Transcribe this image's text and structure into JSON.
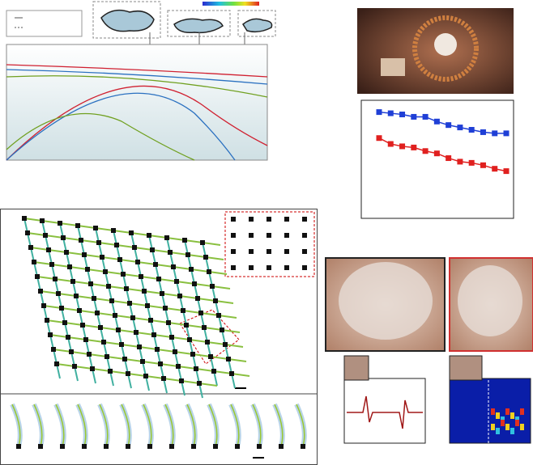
{
  "chart_data": {
    "type": "line",
    "categories": [
      null,
      null,
      null,
      null,
      null,
      null,
      null,
      null,
      null,
      null,
      null,
      null
    ],
    "series": [
      {
        "color": "#1f3fd6",
        "values": [
          0.9,
          0.89,
          0.88,
          0.86,
          0.86,
          0.82,
          0.79,
          0.77,
          0.75,
          0.73,
          0.72,
          0.72
        ]
      },
      {
        "color": "#e0201f",
        "values": [
          0.68,
          0.63,
          0.61,
          0.6,
          0.57,
          0.55,
          0.51,
          0.48,
          0.47,
          0.45,
          0.42,
          0.4
        ]
      }
    ],
    "ylim": [
      0,
      1
    ]
  }
}
